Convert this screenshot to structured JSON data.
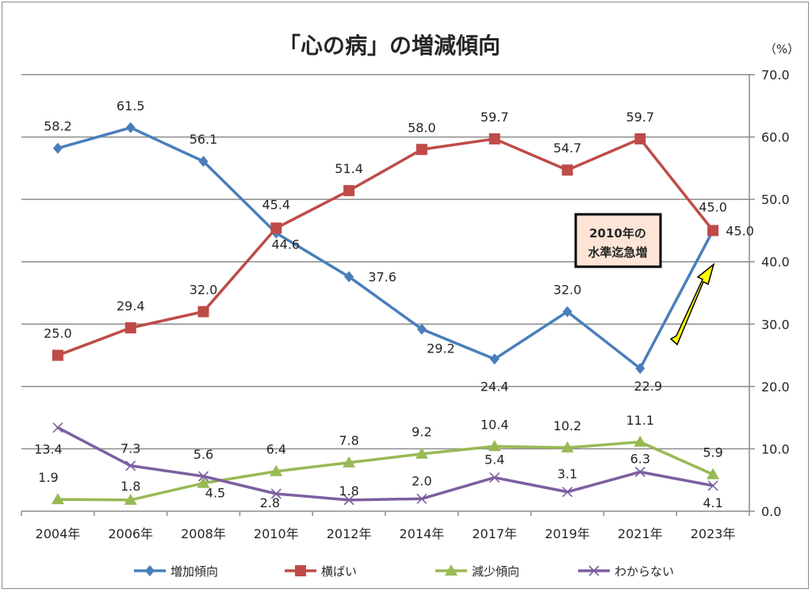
{
  "chart_data": {
    "type": "line",
    "title": "「心の病」の増減傾向",
    "y_unit_label": "（%）",
    "categories": [
      "2004年",
      "2006年",
      "2008年",
      "2010年",
      "2012年",
      "2014年",
      "2017年",
      "2019年",
      "2021年",
      "2023年"
    ],
    "ylim": [
      0,
      70
    ],
    "yticks": [
      "0.0",
      "10.0",
      "20.0",
      "30.0",
      "40.0",
      "50.0",
      "60.0",
      "70.0"
    ],
    "y_axis_side": "right",
    "grid": true,
    "legend_position": "bottom",
    "series": [
      {
        "name": "増加傾向",
        "color": "#4a7ebb",
        "marker": "diamond",
        "values": [
          58.2,
          61.5,
          56.1,
          44.6,
          37.6,
          29.2,
          24.4,
          32.0,
          22.9,
          45.0
        ]
      },
      {
        "name": "横ばい",
        "color": "#be4b48",
        "marker": "square",
        "values": [
          25.0,
          29.4,
          32.0,
          45.4,
          51.4,
          58.0,
          59.7,
          54.7,
          59.7,
          45.0
        ]
      },
      {
        "name": "減少傾向",
        "color": "#98b954",
        "marker": "triangle",
        "values": [
          1.9,
          1.8,
          4.5,
          6.4,
          7.8,
          9.2,
          10.4,
          10.2,
          11.1,
          5.9
        ]
      },
      {
        "name": "わからない",
        "color": "#7d5fa0",
        "marker": "x",
        "values": [
          13.4,
          7.3,
          5.6,
          2.8,
          1.8,
          2.0,
          5.4,
          3.1,
          6.3,
          4.1
        ]
      }
    ],
    "annotation": {
      "text_line1": "2010年の",
      "text_line2": "水準迄急増",
      "box_color": "#fce4d6",
      "arrow_color": "#ffff00"
    }
  }
}
